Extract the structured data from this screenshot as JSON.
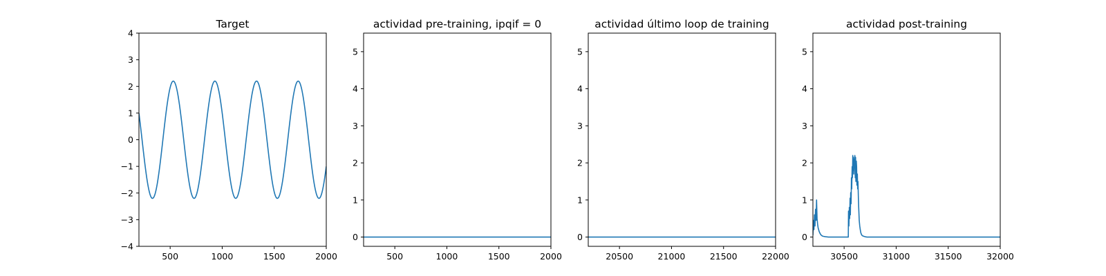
{
  "figure": {
    "background": "#ffffff",
    "line_color": "#1f77b4"
  },
  "chart_data": [
    {
      "type": "line",
      "title": "Target",
      "xlim": [
        200,
        2000
      ],
      "ylim": [
        -4,
        4
      ],
      "xticks": [
        500,
        1000,
        1500,
        2000
      ],
      "yticks": [
        -4,
        -3,
        -2,
        -1,
        0,
        1,
        2,
        3,
        4
      ],
      "series": [
        {
          "function": "sine",
          "amplitude": 2.2,
          "period": 400,
          "peaks_at_x": [
            530,
            930,
            1330,
            1730
          ],
          "x_range": [
            200,
            2000
          ]
        }
      ]
    },
    {
      "type": "line",
      "title": "actividad pre-training, ipqif = 0",
      "xlim": [
        200,
        2000
      ],
      "ylim": [
        -0.25,
        5.5
      ],
      "xticks": [
        500,
        1000,
        1500,
        2000
      ],
      "yticks": [
        0,
        1,
        2,
        3,
        4,
        5
      ],
      "series": [
        {
          "x": [
            200,
            2000
          ],
          "y": [
            0,
            0
          ]
        }
      ]
    },
    {
      "type": "line",
      "title": "actividad último loop de training",
      "xlim": [
        20200,
        22000
      ],
      "ylim": [
        -0.25,
        5.5
      ],
      "xticks": [
        20500,
        21000,
        21500,
        22000
      ],
      "yticks": [
        0,
        1,
        2,
        3,
        4,
        5
      ],
      "series": [
        {
          "x": [
            20200,
            22000
          ],
          "y": [
            0,
            0
          ]
        }
      ]
    },
    {
      "type": "line",
      "title": "actividad post-training",
      "xlim": [
        30200,
        32000
      ],
      "ylim": [
        -0.25,
        5.5
      ],
      "xticks": [
        30500,
        31000,
        31500,
        32000
      ],
      "yticks": [
        0,
        1,
        2,
        3,
        4,
        5
      ],
      "series": [
        {
          "x": [
            30200,
            30205,
            30210,
            30215,
            30220,
            30225,
            30230,
            30235,
            30240,
            30245,
            30250,
            30260,
            30270,
            30280,
            30290,
            30300,
            30320,
            30350,
            30400,
            30450,
            30500,
            30540,
            30542,
            30546,
            30550,
            30553,
            30557,
            30560,
            30563,
            30567,
            30570,
            30573,
            30577,
            30580,
            30583,
            30587,
            30590,
            30593,
            30597,
            30600,
            30603,
            30607,
            30610,
            30613,
            30617,
            30620,
            30623,
            30627,
            30630,
            30633,
            30637,
            30640,
            30645,
            30650,
            30655,
            30660,
            30665,
            30670,
            30680,
            30690,
            30700,
            30720,
            30750,
            30800,
            30900,
            31000,
            31500,
            32000
          ],
          "y": [
            0.05,
            0.45,
            0.2,
            0.6,
            0.3,
            0.75,
            0.45,
            1.0,
            0.5,
            0.35,
            0.25,
            0.15,
            0.09,
            0.05,
            0.03,
            0.02,
            0.01,
            0.0,
            0.0,
            0.0,
            0.0,
            0.0,
            0.7,
            0.3,
            0.8,
            0.5,
            1.05,
            0.6,
            1.2,
            0.9,
            1.6,
            1.3,
            1.9,
            1.6,
            2.2,
            1.8,
            2.15,
            1.7,
            2.1,
            1.9,
            2.2,
            1.6,
            2.15,
            1.5,
            2.05,
            1.9,
            1.4,
            1.7,
            1.3,
            1.5,
            1.05,
            0.8,
            0.45,
            0.3,
            0.2,
            0.12,
            0.08,
            0.05,
            0.03,
            0.02,
            0.01,
            0.0,
            0.0,
            0.0,
            0.0,
            0.0,
            0.0,
            0.0
          ]
        }
      ]
    }
  ]
}
